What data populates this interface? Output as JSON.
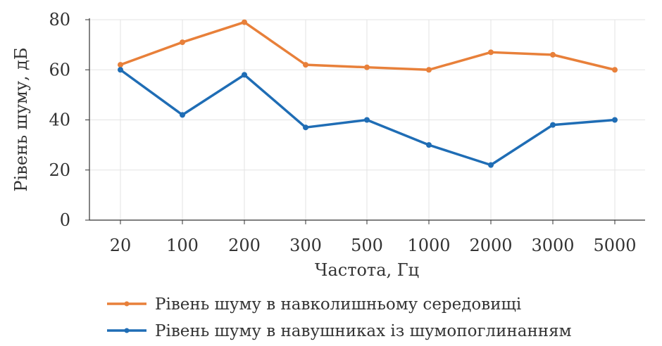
{
  "chart_data": {
    "type": "line",
    "categories": [
      "20",
      "100",
      "200",
      "300",
      "500",
      "1000",
      "2000",
      "3000",
      "5000"
    ],
    "series": [
      {
        "name": "Рівень шуму в навколишньому середовищі",
        "color": "#e8803a",
        "values": [
          62,
          71,
          79,
          62,
          61,
          60,
          67,
          66,
          60
        ]
      },
      {
        "name": "Рівень шуму в навушниках із шумопоглинанням",
        "color": "#1f6db5",
        "values": [
          60,
          42,
          58,
          37,
          40,
          30,
          22,
          38,
          40
        ]
      }
    ],
    "xlabel": "Частота, Гц",
    "ylabel": "Рівень шуму, дБ",
    "ylim": [
      0,
      80
    ],
    "yticks": [
      0,
      20,
      40,
      60,
      80
    ],
    "grid": true,
    "legend": "bottom"
  }
}
